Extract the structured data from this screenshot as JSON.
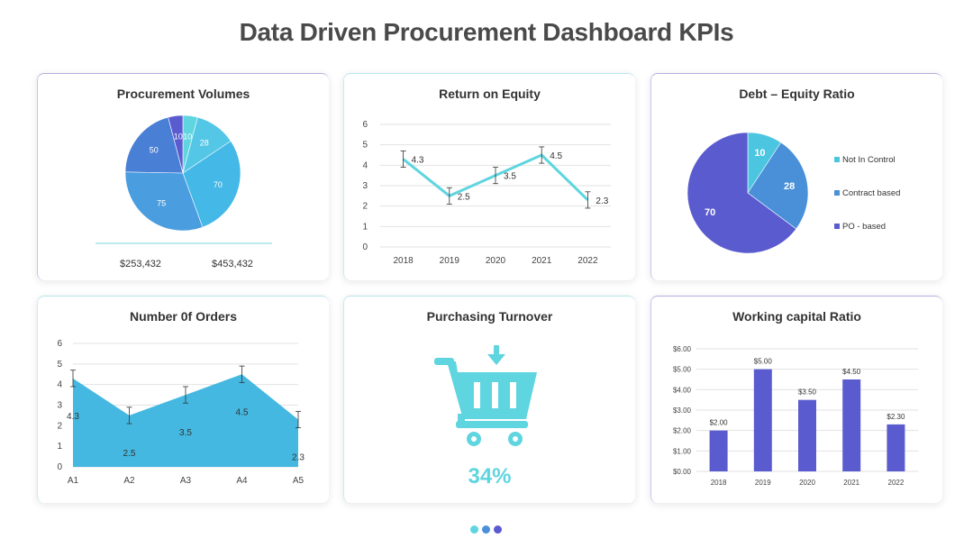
{
  "page": {
    "title": "Data Driven Procurement Dashboard KPIs"
  },
  "colors": {
    "cyan": "#5fd5df",
    "blue": "#4a90d9",
    "purple": "#5b5bd0",
    "dark_blue": "#3d6fc7",
    "area": "#44b8e0"
  },
  "chart_data": [
    {
      "type": "pie",
      "title": "Procurement Volumes",
      "labels": [
        "10",
        "28",
        "70",
        "75",
        "50",
        "10"
      ],
      "values": [
        10,
        28,
        70,
        75,
        50,
        10
      ],
      "colors": [
        "#5fd5df",
        "#55c7e6",
        "#44b8e6",
        "#4a9ee0",
        "#4a7fd6",
        "#5b5bd0"
      ],
      "footer": [
        "$253,432",
        "$453,432"
      ]
    },
    {
      "type": "line",
      "title": "Return on Equity",
      "categories": [
        "2018",
        "2019",
        "2020",
        "2021",
        "2022"
      ],
      "values": [
        4.3,
        2.5,
        3.5,
        4.5,
        2.3
      ],
      "ylim": [
        0,
        6
      ],
      "yticks": [
        "0",
        "1",
        "2",
        "3",
        "4",
        "5",
        "6"
      ],
      "error_bars": true,
      "grid": true
    },
    {
      "type": "pie",
      "title": "Debt – Equity Ratio",
      "labels": [
        "Not In Control",
        "Contract based",
        "PO - based"
      ],
      "values": [
        10,
        28,
        70
      ],
      "colors": [
        "#4cc6e0",
        "#4a90d9",
        "#5b5bd0"
      ],
      "legend": "right"
    },
    {
      "type": "area",
      "title": "Number 0f Orders",
      "categories": [
        "A1",
        "A2",
        "A3",
        "A4",
        "A5"
      ],
      "values": [
        4.3,
        2.5,
        3.5,
        4.5,
        2.3
      ],
      "ylim": [
        0,
        6
      ],
      "yticks": [
        "0",
        "1",
        "2",
        "3",
        "4",
        "5",
        "6"
      ],
      "error_bars": true,
      "grid": true
    },
    {
      "type": "bar",
      "title": "Working capital Ratio",
      "categories": [
        "2018",
        "2019",
        "2020",
        "2021",
        "2022"
      ],
      "values": [
        2.0,
        5.0,
        3.5,
        4.5,
        2.3
      ],
      "value_labels": [
        "$2.00",
        "$5.00",
        "$3.50",
        "$4.50",
        "$2.30"
      ],
      "ylim": [
        0,
        6
      ],
      "yticks": [
        "$0.00",
        "$1.00",
        "$2.00",
        "$3.00",
        "$4.00",
        "$5.00",
        "$6.00"
      ],
      "grid": true
    }
  ],
  "turnover": {
    "title": "Purchasing Turnover",
    "value": "34%",
    "icon": "shopping-cart-icon"
  }
}
